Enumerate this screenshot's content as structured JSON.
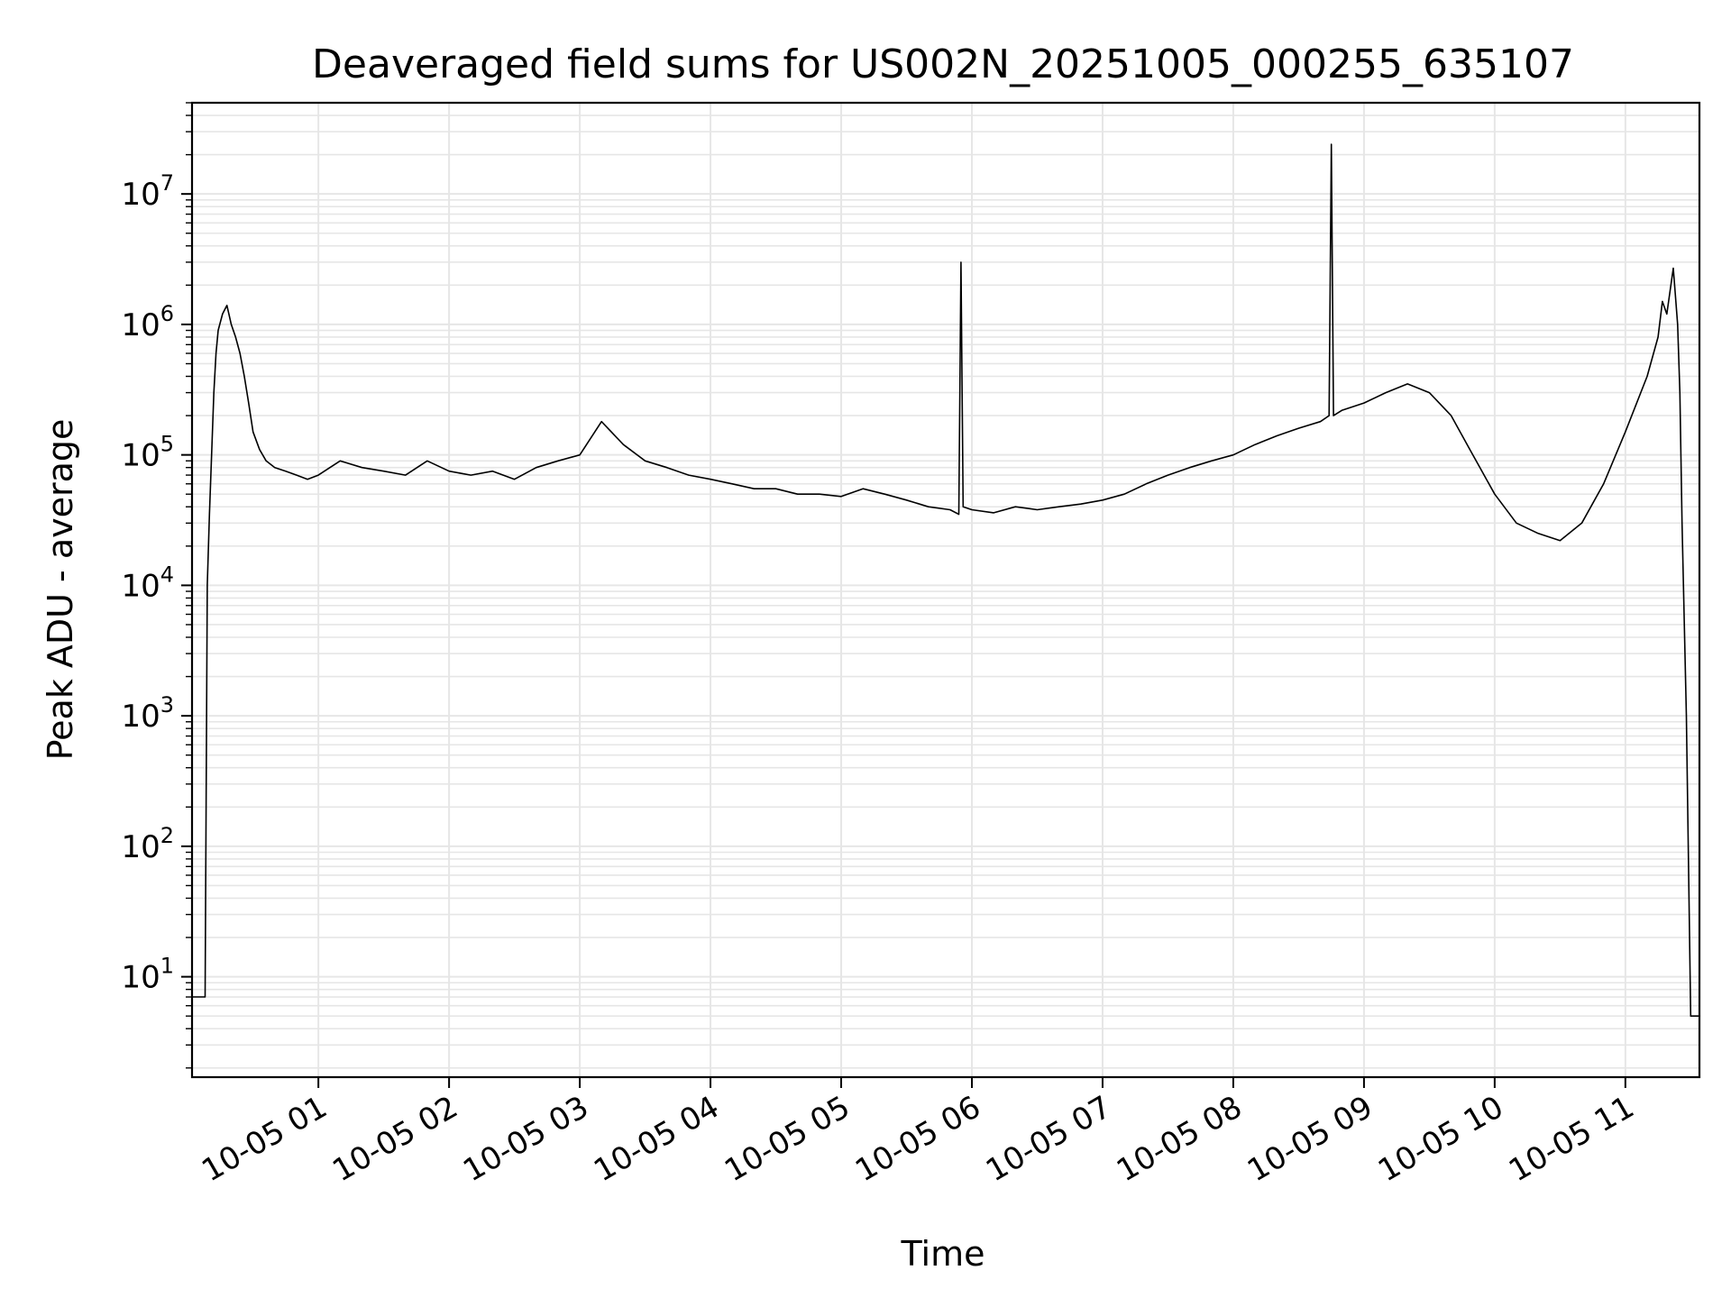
{
  "chart_data": {
    "type": "line",
    "title": "Deaveraged field sums for US002N_20251005_000255_635107",
    "xlabel": "Time",
    "ylabel": "Peak ADU - average",
    "yscale": "log",
    "ylim": [
      1.7,
      50000000
    ],
    "xlim": [
      "2025-10-05 00:02",
      "2025-10-05 11:34"
    ],
    "grid": true,
    "line_color": "#000000",
    "grid_color": "#e6e6e6",
    "x_ticks": [
      "10-05 01",
      "10-05 02",
      "10-05 03",
      "10-05 04",
      "10-05 05",
      "10-05 06",
      "10-05 07",
      "10-05 08",
      "10-05 09",
      "10-05 10",
      "10-05 11"
    ],
    "y_ticks": [
      {
        "base": "10",
        "exp": "1",
        "value": 10
      },
      {
        "base": "10",
        "exp": "2",
        "value": 100
      },
      {
        "base": "10",
        "exp": "3",
        "value": 1000
      },
      {
        "base": "10",
        "exp": "4",
        "value": 10000
      },
      {
        "base": "10",
        "exp": "5",
        "value": 100000
      },
      {
        "base": "10",
        "exp": "6",
        "value": 1000000
      },
      {
        "base": "10",
        "exp": "7",
        "value": 10000000
      }
    ],
    "series": [
      {
        "x": [
          "00:02",
          "00:07",
          "00:08",
          "00:09",
          "00:10",
          "00:11",
          "00:12",
          "00:13",
          "00:14",
          "00:16",
          "00:18",
          "00:20",
          "00:22",
          "00:24",
          "00:26",
          "00:28",
          "00:30",
          "00:33",
          "00:36",
          "00:40",
          "00:45",
          "00:50",
          "00:55",
          "01:00",
          "01:10",
          "01:20",
          "01:30",
          "01:40",
          "01:50",
          "02:00",
          "02:10",
          "02:20",
          "02:30",
          "02:40",
          "02:50",
          "03:00",
          "03:10",
          "03:20",
          "03:30",
          "03:40",
          "03:50",
          "04:00",
          "04:10",
          "04:20",
          "04:30",
          "04:40",
          "04:50",
          "05:00",
          "05:10",
          "05:20",
          "05:30",
          "05:40",
          "05:50",
          "05:54",
          "05:55",
          "05:56",
          "06:00",
          "06:10",
          "06:20",
          "06:30",
          "06:40",
          "06:50",
          "07:00",
          "07:10",
          "07:20",
          "07:30",
          "07:40",
          "07:50",
          "08:00",
          "08:10",
          "08:20",
          "08:30",
          "08:40",
          "08:44",
          "08:45",
          "08:46",
          "08:50",
          "09:00",
          "09:10",
          "09:20",
          "09:30",
          "09:40",
          "09:50",
          "10:00",
          "10:10",
          "10:20",
          "10:30",
          "10:40",
          "10:50",
          "11:00",
          "11:10",
          "11:15",
          "11:17",
          "11:19",
          "11:22",
          "11:24",
          "11:25",
          "11:26",
          "11:28",
          "11:30",
          "11:34"
        ],
        "y": [
          7,
          7,
          7,
          10000,
          35000,
          100000,
          300000,
          600000,
          900000,
          1200000,
          1400000,
          1000000,
          800000,
          600000,
          400000,
          250000,
          150000,
          110000,
          90000,
          80000,
          75000,
          70000,
          65000,
          70000,
          90000,
          80000,
          75000,
          70000,
          90000,
          75000,
          70000,
          75000,
          65000,
          80000,
          90000,
          100000,
          180000,
          120000,
          90000,
          80000,
          70000,
          65000,
          60000,
          55000,
          55000,
          50000,
          50000,
          48000,
          55000,
          50000,
          45000,
          40000,
          38000,
          35000,
          3000000,
          40000,
          38000,
          36000,
          40000,
          38000,
          40000,
          42000,
          45000,
          50000,
          60000,
          70000,
          80000,
          90000,
          100000,
          120000,
          140000,
          160000,
          180000,
          200000,
          24000000,
          200000,
          220000,
          250000,
          300000,
          350000,
          300000,
          200000,
          100000,
          50000,
          30000,
          25000,
          22000,
          30000,
          60000,
          150000,
          400000,
          800000,
          1500000,
          1200000,
          2700000,
          1000000,
          300000,
          30000,
          1000,
          5,
          5
        ]
      }
    ]
  }
}
